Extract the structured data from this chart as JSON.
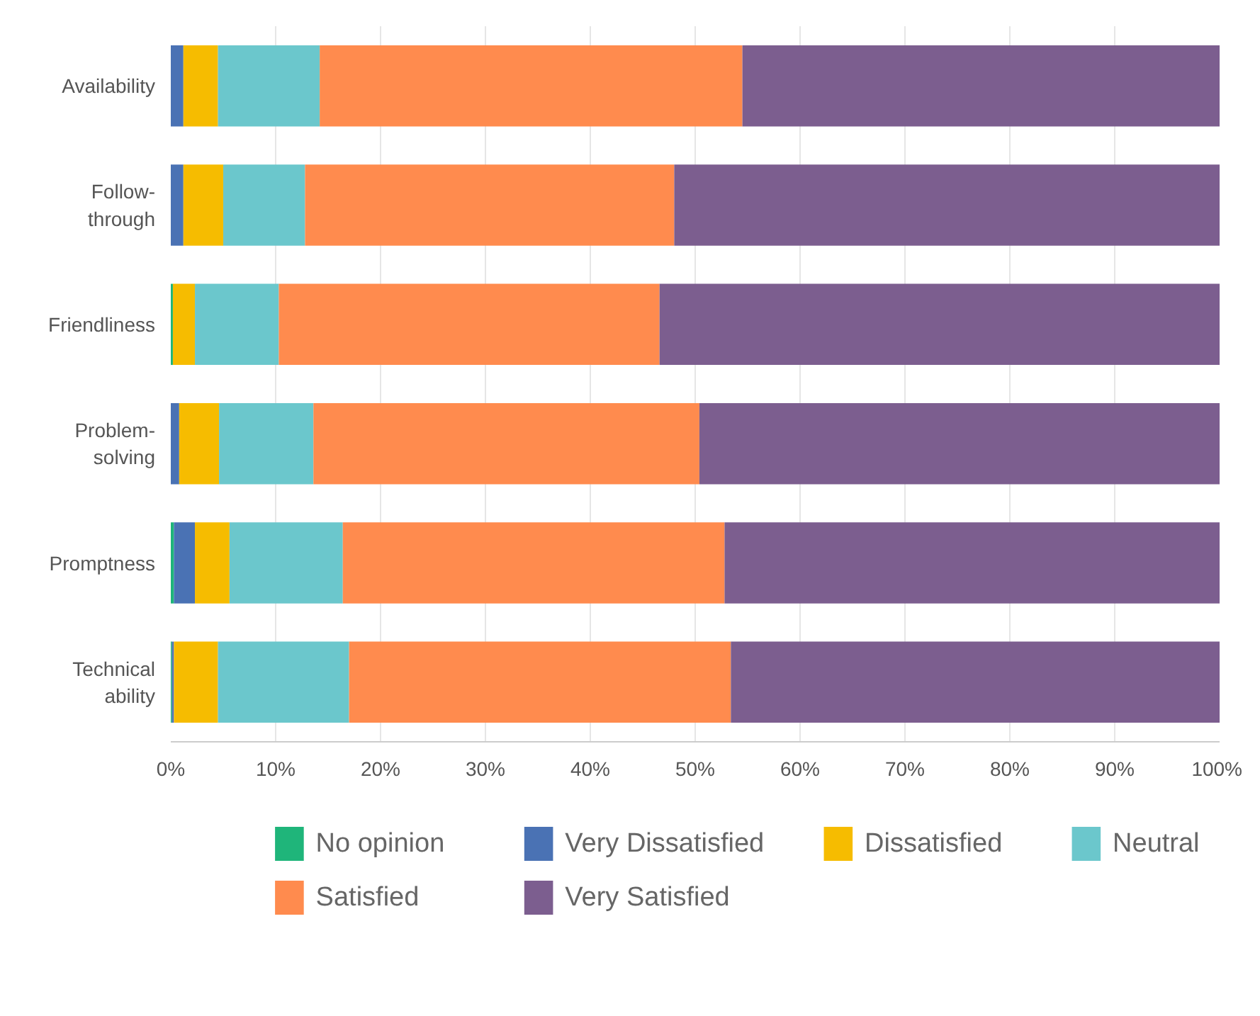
{
  "chart_data": {
    "type": "bar",
    "orientation": "horizontal",
    "stacked": true,
    "categories": [
      "Availability",
      "Follow-through",
      "Friendliness",
      "Problem-solving",
      "Promptness",
      "Technical ability"
    ],
    "series": [
      {
        "name": "No opinion",
        "color": "#1fb57a",
        "values": [
          0,
          0,
          0.2,
          0,
          0.3,
          0.1
        ]
      },
      {
        "name": "Very Dissatisfied",
        "color": "#4a72b4",
        "values": [
          1.2,
          1.2,
          0,
          0.8,
          2.0,
          0.2
        ]
      },
      {
        "name": "Dissatisfied",
        "color": "#f6bc00",
        "values": [
          3.3,
          3.8,
          2.1,
          3.8,
          3.3,
          4.2
        ]
      },
      {
        "name": "Neutral",
        "color": "#6bc7cc",
        "values": [
          9.7,
          7.8,
          8.0,
          9.0,
          10.8,
          12.5
        ]
      },
      {
        "name": "Satisfied",
        "color": "#ff8b4e",
        "values": [
          40.3,
          35.2,
          36.3,
          36.8,
          36.4,
          36.4
        ]
      },
      {
        "name": "Very Satisfied",
        "color": "#7c5e8f",
        "values": [
          45.5,
          52.0,
          53.4,
          49.6,
          47.2,
          46.6
        ]
      }
    ],
    "xlim": [
      0,
      100
    ],
    "xticks": [
      {
        "value": 0,
        "label": "0%"
      },
      {
        "value": 10,
        "label": "10%"
      },
      {
        "value": 20,
        "label": "20%"
      },
      {
        "value": 30,
        "label": "30%"
      },
      {
        "value": 40,
        "label": "40%"
      },
      {
        "value": 50,
        "label": "50%"
      },
      {
        "value": 60,
        "label": "60%"
      },
      {
        "value": 70,
        "label": "70%"
      },
      {
        "value": 80,
        "label": "80%"
      },
      {
        "value": 90,
        "label": "90%"
      },
      {
        "value": 100,
        "label": "100%"
      }
    ],
    "grid": "x",
    "legend": "bottom"
  }
}
